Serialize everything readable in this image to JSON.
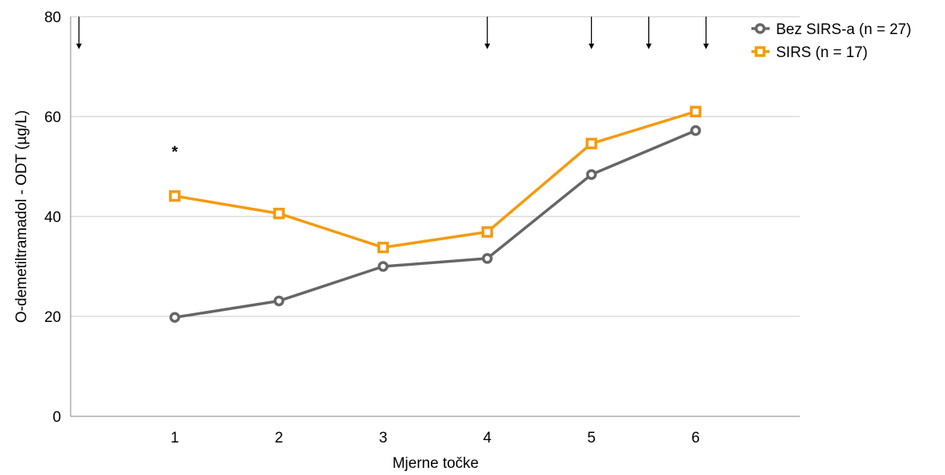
{
  "chart_data": {
    "type": "line",
    "title": "",
    "xlabel": "Mjerne točke",
    "ylabel": "O-demetiltramadol - ODT (µg/L)",
    "x": [
      1,
      2,
      3,
      4,
      5,
      6
    ],
    "xtick_labels": [
      "1",
      "2",
      "3",
      "4",
      "5",
      "6"
    ],
    "xlim": [
      0,
      7
    ],
    "ylim": [
      0,
      80
    ],
    "yticks": [
      0,
      20,
      40,
      60,
      80
    ],
    "ytick_labels": [
      "0",
      "20",
      "40",
      "60",
      "80"
    ],
    "grid": "horizontal",
    "legend_position": "top-right",
    "series": [
      {
        "name": "Bez SIRS-a (n = 27)",
        "marker": "circle",
        "color": "#666666",
        "values": [
          19.8,
          23.1,
          30.0,
          31.6,
          48.4,
          57.2
        ]
      },
      {
        "name": "SIRS (n = 17)",
        "marker": "square",
        "color": "#F59A0D",
        "values": [
          44.1,
          40.6,
          33.8,
          36.9,
          54.6,
          61.0
        ]
      }
    ],
    "annotations": [
      {
        "text": "*",
        "x": 1,
        "y": 53.3
      }
    ],
    "arrow_markers_x": [
      0.08,
      4.0,
      5.0,
      5.55,
      6.1
    ]
  }
}
